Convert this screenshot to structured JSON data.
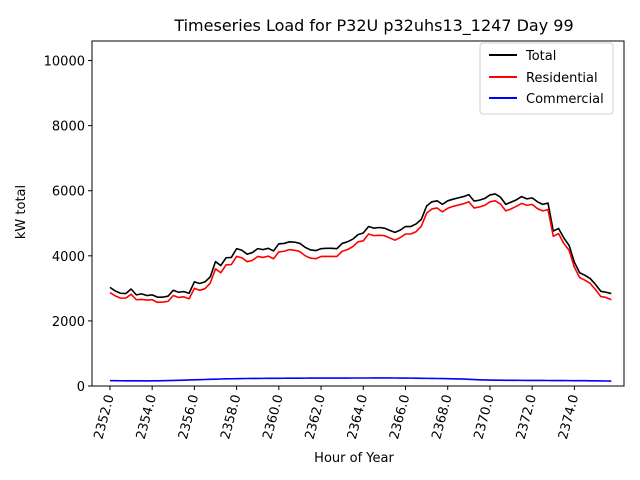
{
  "chart_data": {
    "type": "line",
    "title": "Timeseries Load for P32U p32uhs13_1247  Day 99",
    "xlabel": "Hour of Year",
    "ylabel": "kW total",
    "xlim": [
      2351.15,
      2376.35
    ],
    "ylim": [
      0,
      10600
    ],
    "xticks": [
      2352,
      2354,
      2356,
      2358,
      2360,
      2362,
      2364,
      2366,
      2368,
      2370,
      2372,
      2374
    ],
    "xtick_labels": [
      "2352.0",
      "2354.0",
      "2356.0",
      "2358.0",
      "2360.0",
      "2362.0",
      "2364.0",
      "2366.0",
      "2368.0",
      "2370.0",
      "2372.0",
      "2374.0"
    ],
    "yticks": [
      0,
      2000,
      4000,
      6000,
      8000,
      10000
    ],
    "ytick_labels": [
      "0",
      "2000",
      "4000",
      "6000",
      "8000",
      "10000"
    ],
    "legend_position": "top-right",
    "x": [
      2352.0,
      2352.25,
      2352.5,
      2352.75,
      2353.0,
      2353.25,
      2353.5,
      2353.75,
      2354.0,
      2354.25,
      2354.5,
      2354.75,
      2355.0,
      2355.25,
      2355.5,
      2355.75,
      2356.0,
      2356.25,
      2356.5,
      2356.75,
      2357.0,
      2357.25,
      2357.5,
      2357.75,
      2358.0,
      2358.25,
      2358.5,
      2358.75,
      2359.0,
      2359.25,
      2359.5,
      2359.75,
      2360.0,
      2360.25,
      2360.5,
      2360.75,
      2361.0,
      2361.25,
      2361.5,
      2361.75,
      2362.0,
      2362.25,
      2362.5,
      2362.75,
      2363.0,
      2363.25,
      2363.5,
      2363.75,
      2364.0,
      2364.25,
      2364.5,
      2364.75,
      2365.0,
      2365.25,
      2365.5,
      2365.75,
      2366.0,
      2366.25,
      2366.5,
      2366.75,
      2367.0,
      2367.25,
      2367.5,
      2367.75,
      2368.0,
      2368.25,
      2368.5,
      2368.75,
      2369.0,
      2369.25,
      2369.5,
      2369.75,
      2370.0,
      2370.25,
      2370.5,
      2370.75,
      2371.0,
      2371.25,
      2371.5,
      2371.75,
      2372.0,
      2372.25,
      2372.5,
      2372.75,
      2373.0,
      2373.25,
      2373.5,
      2373.75,
      2374.0,
      2374.25,
      2374.5,
      2374.75,
      2375.0,
      2375.25,
      2375.5,
      2375.75
    ],
    "series": [
      {
        "name": "Total",
        "color": "#000000",
        "values": [
          3030,
          2920,
          2850,
          2840,
          2980,
          2800,
          2830,
          2780,
          2800,
          2730,
          2730,
          2760,
          2940,
          2880,
          2900,
          2850,
          3200,
          3150,
          3200,
          3350,
          3820,
          3700,
          3940,
          3950,
          4220,
          4170,
          4050,
          4100,
          4220,
          4190,
          4230,
          4150,
          4370,
          4380,
          4430,
          4420,
          4380,
          4260,
          4180,
          4160,
          4220,
          4230,
          4230,
          4220,
          4380,
          4430,
          4510,
          4650,
          4700,
          4900,
          4850,
          4870,
          4850,
          4780,
          4720,
          4790,
          4900,
          4900,
          4980,
          5120,
          5530,
          5660,
          5690,
          5580,
          5690,
          5740,
          5780,
          5820,
          5880,
          5680,
          5710,
          5760,
          5870,
          5900,
          5800,
          5580,
          5650,
          5720,
          5820,
          5750,
          5780,
          5660,
          5580,
          5620,
          4760,
          4840,
          4550,
          4320,
          3800,
          3480,
          3400,
          3300,
          3120,
          2910,
          2880,
          2840
        ]
      },
      {
        "name": "Residential",
        "color": "#ff0000",
        "values": [
          2870,
          2770,
          2700,
          2700,
          2820,
          2650,
          2660,
          2640,
          2650,
          2570,
          2580,
          2600,
          2780,
          2720,
          2740,
          2680,
          3000,
          2940,
          2990,
          3160,
          3600,
          3480,
          3720,
          3730,
          3980,
          3940,
          3820,
          3860,
          3980,
          3950,
          3990,
          3910,
          4120,
          4140,
          4190,
          4170,
          4130,
          4000,
          3930,
          3910,
          3980,
          3980,
          3980,
          3980,
          4140,
          4190,
          4280,
          4430,
          4460,
          4670,
          4620,
          4630,
          4620,
          4550,
          4480,
          4560,
          4670,
          4670,
          4740,
          4910,
          5310,
          5440,
          5470,
          5350,
          5460,
          5520,
          5560,
          5600,
          5660,
          5470,
          5500,
          5550,
          5660,
          5690,
          5590,
          5380,
          5440,
          5520,
          5610,
          5550,
          5580,
          5450,
          5380,
          5420,
          4600,
          4680,
          4380,
          4170,
          3650,
          3330,
          3250,
          3150,
          2960,
          2750,
          2720,
          2650
        ]
      },
      {
        "name": "Commercial",
        "color": "#0000ff",
        "values": [
          165,
          162,
          161,
          160,
          160,
          158,
          158,
          157,
          158,
          160,
          163,
          166,
          170,
          175,
          180,
          185,
          190,
          195,
          200,
          205,
          210,
          215,
          220,
          223,
          226,
          228,
          230,
          232,
          233,
          234,
          235,
          236,
          237,
          238,
          239,
          240,
          241,
          242,
          243,
          244,
          244,
          245,
          245,
          245,
          245,
          245,
          246,
          246,
          246,
          246,
          247,
          247,
          247,
          247,
          246,
          245,
          244,
          242,
          240,
          237,
          234,
          232,
          230,
          228,
          225,
          222,
          218,
          212,
          205,
          198,
          190,
          185,
          182,
          180,
          178,
          176,
          175,
          174,
          173,
          172,
          172,
          171,
          170,
          169,
          168,
          167,
          166,
          165,
          164,
          163,
          162,
          160,
          158,
          156,
          154,
          152
        ]
      }
    ]
  }
}
